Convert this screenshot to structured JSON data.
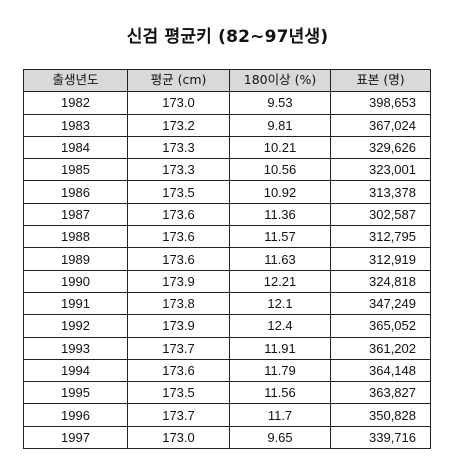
{
  "title": "신검 평균키 (82~97년생)",
  "table": {
    "headers": [
      "출생년도",
      "평균 (cm)",
      "180이상 (%)",
      "표본 (명)"
    ],
    "rows": [
      {
        "year": "1982",
        "avg": "173.0",
        "pct": "9.53",
        "sample": "398,653"
      },
      {
        "year": "1983",
        "avg": "173.2",
        "pct": "9.81",
        "sample": "367,024"
      },
      {
        "year": "1984",
        "avg": "173.3",
        "pct": "10.21",
        "sample": "329,626"
      },
      {
        "year": "1985",
        "avg": "173.3",
        "pct": "10.56",
        "sample": "323,001"
      },
      {
        "year": "1986",
        "avg": "173.5",
        "pct": "10.92",
        "sample": "313,378"
      },
      {
        "year": "1987",
        "avg": "173.6",
        "pct": "11.36",
        "sample": "302,587"
      },
      {
        "year": "1988",
        "avg": "173.6",
        "pct": "11.57",
        "sample": "312,795"
      },
      {
        "year": "1989",
        "avg": "173.6",
        "pct": "11.63",
        "sample": "312,919"
      },
      {
        "year": "1990",
        "avg": "173.9",
        "pct": "12.21",
        "sample": "324,818"
      },
      {
        "year": "1991",
        "avg": "173.8",
        "pct": "12.1",
        "sample": "347,249"
      },
      {
        "year": "1992",
        "avg": "173.9",
        "pct": "12.4",
        "sample": "365,052"
      },
      {
        "year": "1993",
        "avg": "173.7",
        "pct": "11.91",
        "sample": "361,202"
      },
      {
        "year": "1994",
        "avg": "173.6",
        "pct": "11.79",
        "sample": "364,148"
      },
      {
        "year": "1995",
        "avg": "173.5",
        "pct": "11.56",
        "sample": "363,827"
      },
      {
        "year": "1996",
        "avg": "173.7",
        "pct": "11.7",
        "sample": "350,828"
      },
      {
        "year": "1997",
        "avg": "173.0",
        "pct": "9.65",
        "sample": "339,716"
      }
    ]
  }
}
